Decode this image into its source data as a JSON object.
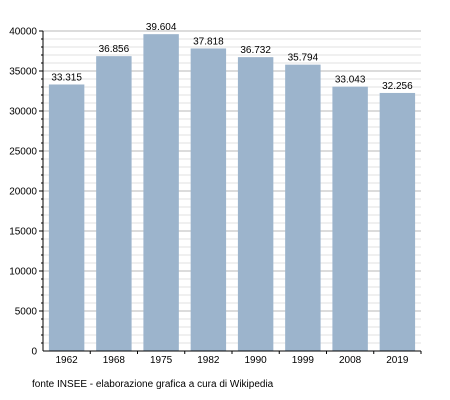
{
  "chart_data": {
    "type": "bar",
    "categories": [
      "1962",
      "1968",
      "1975",
      "1982",
      "1990",
      "1999",
      "2008",
      "2019"
    ],
    "values": [
      33315,
      36856,
      39604,
      37818,
      36732,
      35794,
      33043,
      32256
    ],
    "value_labels": [
      "33.315",
      "36.856",
      "39.604",
      "37.818",
      "36.732",
      "35.794",
      "33.043",
      "32.256"
    ],
    "ylim": [
      0,
      40000
    ],
    "yticks": [
      "0",
      "5000",
      "10000",
      "15000",
      "20000",
      "25000",
      "30000",
      "35000",
      "40000"
    ],
    "grid": true,
    "bar_color": "#9cb4cc"
  },
  "source_note": "fonte INSEE - elaborazione grafica a cura di Wikipedia"
}
